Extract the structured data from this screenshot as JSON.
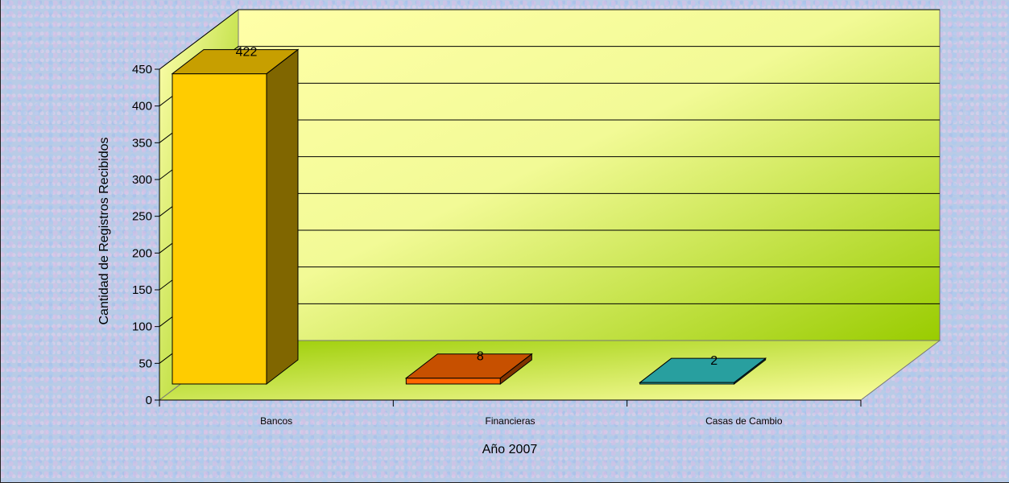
{
  "chart_data": {
    "type": "bar",
    "style": "3d-column",
    "categories": [
      "Bancos",
      "Financieras",
      "Casas de Cambio"
    ],
    "values": [
      422,
      8,
      2
    ],
    "data_labels": [
      "422",
      "8",
      "2"
    ],
    "bar_colors": [
      "#ffcc00",
      "#ff6600",
      "#33cccc"
    ],
    "title": "",
    "xlabel": "Año 2007",
    "ylabel": "Cantidad de Registros Recibidos",
    "ylim": [
      0,
      450
    ],
    "yticks": [
      "0",
      "50",
      "100",
      "150",
      "200",
      "250",
      "300",
      "350",
      "400",
      "450"
    ],
    "grid": true,
    "legend": "none",
    "colors": {
      "wall": "#ffffa0",
      "wall_accent": "#99cc00",
      "gridline": "#000000"
    }
  }
}
